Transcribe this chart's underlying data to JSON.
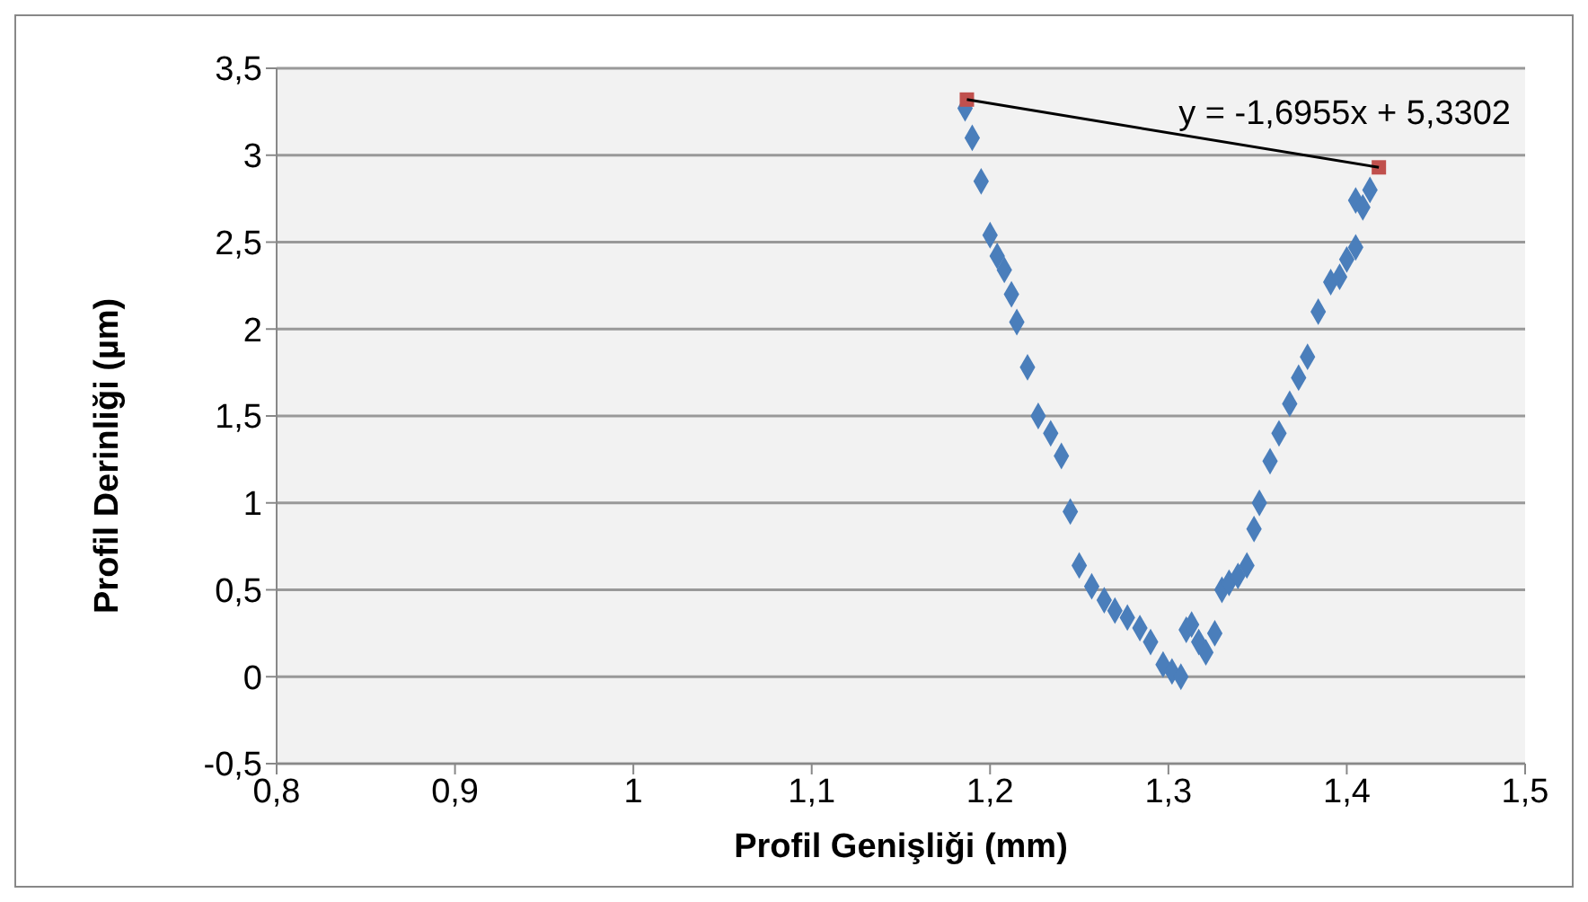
{
  "chart_data": {
    "type": "scatter",
    "xlabel": "Profil Genişliği (mm)",
    "ylabel": "Profil Derinliği (µm)",
    "xlim": [
      0.8,
      1.5
    ],
    "xticks": [
      {
        "value": 0.8,
        "label": "0,8"
      },
      {
        "value": 0.9,
        "label": "0,9"
      },
      1,
      {
        "value": 1.1,
        "label": "1,1"
      },
      {
        "value": 1.2,
        "label": "1,2"
      },
      {
        "value": 1.3,
        "label": "1,3"
      },
      {
        "value": 1.4,
        "label": "1,4"
      },
      {
        "value": 1.5,
        "label": "1,5"
      }
    ],
    "ylim": [
      -0.5,
      3.5
    ],
    "yticks": [
      {
        "value": -0.5,
        "label": "-0,5"
      },
      0,
      {
        "value": 0.5,
        "label": "0,5"
      },
      1,
      {
        "value": 1.5,
        "label": "1,5"
      },
      2,
      {
        "value": 2.5,
        "label": "2,5"
      },
      3,
      {
        "value": 3.5,
        "label": "3,5"
      }
    ],
    "grid": "y",
    "legend": false,
    "annotations": [
      "y = -1,6955x + 5,3302"
    ],
    "series": [
      {
        "marker": "diamond",
        "color": "#4a7ebb",
        "x": [
          1.186,
          1.19,
          1.195,
          1.2,
          1.204,
          1.208,
          1.212,
          1.215,
          1.221,
          1.227,
          1.234,
          1.24,
          1.245,
          1.25,
          1.257,
          1.264,
          1.27,
          1.277,
          1.284,
          1.29,
          1.297,
          1.302,
          1.307,
          1.31,
          1.313,
          1.317,
          1.321,
          1.326,
          1.33,
          1.334,
          1.339,
          1.344,
          1.348,
          1.351,
          1.357,
          1.362,
          1.368,
          1.373,
          1.378,
          1.384,
          1.391,
          1.396,
          1.4,
          1.405,
          1.405,
          1.409,
          1.413
        ],
        "values": [
          3.27,
          3.1,
          2.85,
          2.54,
          2.42,
          2.34,
          2.2,
          2.04,
          1.78,
          1.5,
          1.4,
          1.27,
          0.95,
          0.64,
          0.52,
          0.44,
          0.38,
          0.34,
          0.28,
          0.2,
          0.07,
          0.03,
          0.0,
          0.27,
          0.3,
          0.2,
          0.14,
          0.25,
          0.5,
          0.54,
          0.58,
          0.64,
          0.85,
          1.0,
          1.24,
          1.4,
          1.57,
          1.72,
          1.84,
          2.1,
          2.27,
          2.3,
          2.4,
          2.47,
          2.74,
          2.7,
          2.8
        ]
      },
      {
        "marker": "square",
        "color": "#c0504d",
        "x": [
          1.187,
          1.418
        ],
        "values": [
          3.32,
          2.93
        ]
      },
      {
        "type": "line",
        "marker": "none",
        "color": "#000000",
        "x": [
          1.187,
          1.418
        ],
        "values": [
          3.32,
          2.93
        ]
      }
    ]
  }
}
